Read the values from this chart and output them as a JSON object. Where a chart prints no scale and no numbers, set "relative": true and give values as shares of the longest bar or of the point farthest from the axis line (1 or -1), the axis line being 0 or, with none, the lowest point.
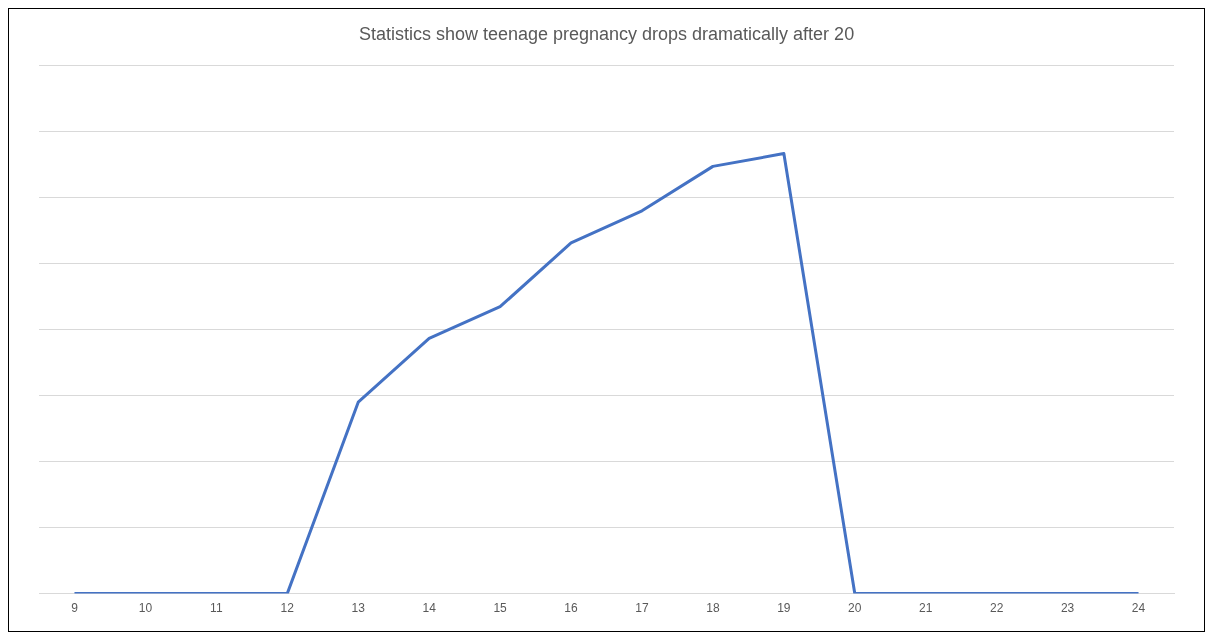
{
  "chart_data": {
    "type": "line",
    "title": "Statistics show teenage pregnancy drops dramatically after 20",
    "categories": [
      "9",
      "10",
      "11",
      "12",
      "13",
      "14",
      "15",
      "16",
      "17",
      "18",
      "19",
      "20",
      "21",
      "22",
      "23",
      "24"
    ],
    "series": [
      {
        "color": "#4472c4",
        "values": [
          0,
          0,
          0,
          0,
          0.435,
          0.58,
          0.652,
          0.797,
          0.87,
          0.971,
          1,
          0,
          0,
          0,
          0,
          0
        ]
      }
    ],
    "relative": true,
    "grid": "y",
    "legend": false,
    "marker": "none",
    "line_style": "solid"
  }
}
